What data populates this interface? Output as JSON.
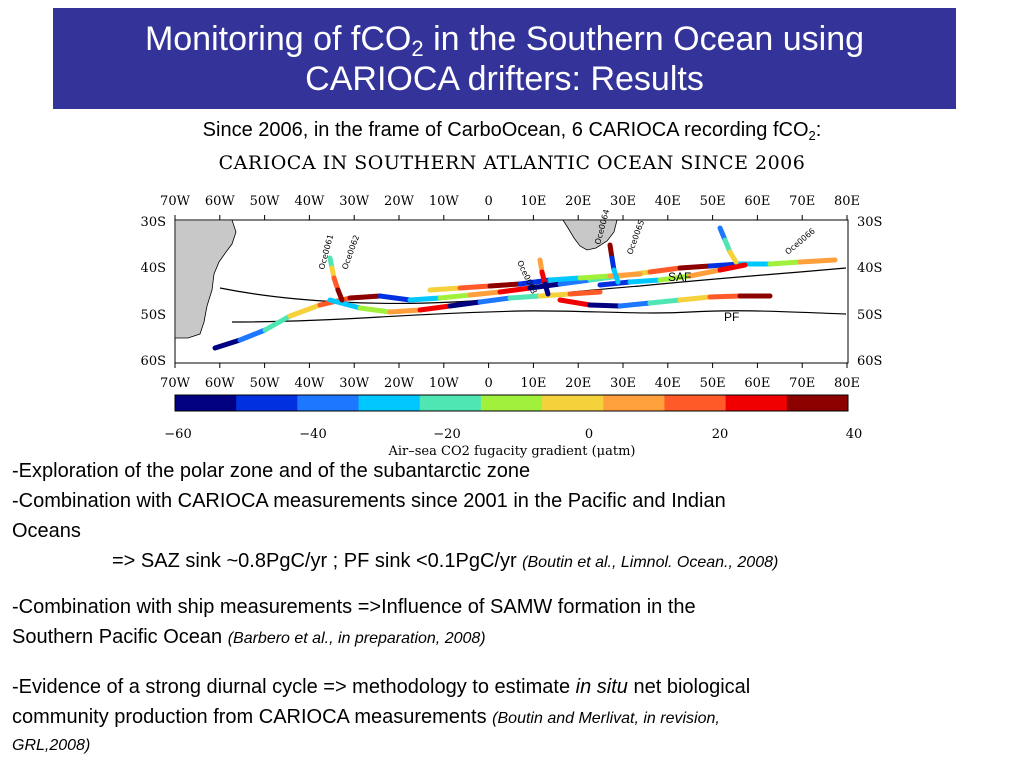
{
  "slide": {
    "title_line1_a": "Monitoring of fCO",
    "title_line1_sub": "2",
    "title_line1_b": " in the Southern Ocean using",
    "title_line2": "CARIOCA drifters: Results",
    "subtitle_a": "Since 2006, in the frame of CarboOcean, 6 CARIOCA recording fCO",
    "subtitle_sub": "2",
    "subtitle_b": ":"
  },
  "map": {
    "title": "CARIOCA IN SOUTHERN ATLANTIC OCEAN SINCE 2006",
    "lon_labels": [
      "70W",
      "60W",
      "50W",
      "40W",
      "30W",
      "20W",
      "10W",
      "0",
      "10E",
      "20E",
      "30E",
      "40E",
      "50E",
      "60E",
      "70E",
      "80E"
    ],
    "lat_labels": [
      "30S",
      "40S",
      "50S",
      "60S"
    ],
    "front_labels": [
      "SAF",
      "PF"
    ],
    "land_color": "#c8c8c8",
    "track_labels": [
      "Oce0061",
      "Oce0062",
      "Oce0063",
      "Oce0064",
      "Oce0065",
      "Oce0066"
    ]
  },
  "colorbar": {
    "colors": [
      "#000080",
      "#0030e0",
      "#1e78ff",
      "#00c8ff",
      "#50e6b4",
      "#a0f03c",
      "#f5d23c",
      "#ffa03c",
      "#ff5a28",
      "#f00000",
      "#8c0000"
    ],
    "tick_labels": [
      "−60",
      "−40",
      "−20",
      "0",
      "20",
      "40"
    ],
    "label": "Air–sea CO2 fugacity gradient (μatm)"
  },
  "bullets": {
    "b1": "-Exploration of the polar zone and of the subantarctic zone",
    "b2a": "-Combination with CARIOCA measurements since 2001 in the Pacific and Indian",
    "b2b": "Oceans",
    "b3_text": "=> SAZ sink ~0.8PgC/yr ; PF sink <0.1PgC/yr ",
    "b3_ref": "(Boutin et al., Limnol. Ocean., 2008)",
    "b4a": "-Combination with ship measurements =>Influence of SAMW formation in the",
    "b4b_text": "Southern Pacific Ocean ",
    "b4b_ref": "(Barbero et al., in preparation, 2008)",
    "b5a_text": "-Evidence of a strong diurnal cycle => methodology to estimate ",
    "b5a_italic": "in situ",
    "b5a_tail": " net biological",
    "b5b_text": "community production from CARIOCA measurements ",
    "b5b_ref": "(Boutin and Merlivat, in revision,",
    "b5c_ref": "GRL,2008)"
  }
}
